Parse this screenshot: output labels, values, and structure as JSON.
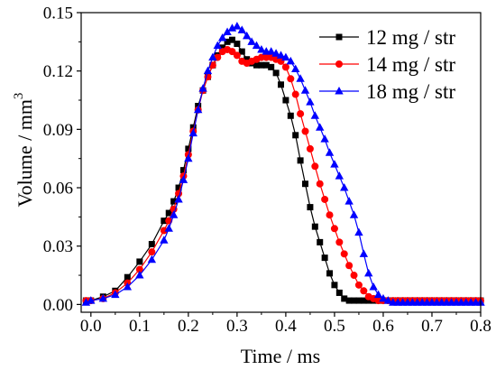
{
  "chart_data": {
    "type": "line",
    "xlabel": "Time / ms",
    "ylabel": "Volume / mm",
    "ylabel_superscript": "3",
    "xlim": [
      -0.02,
      0.8
    ],
    "ylim": [
      -0.004,
      0.15
    ],
    "xticks": [
      "0.0",
      "0.1",
      "0.2",
      "0.3",
      "0.4",
      "0.5",
      "0.6",
      "0.7",
      "0.8"
    ],
    "yticks": [
      "0.00",
      "0.03",
      "0.06",
      "0.09",
      "0.12",
      "0.15"
    ],
    "grid": false,
    "legend_position": "top-right",
    "x": [
      -0.01,
      0.0,
      0.025,
      0.05,
      0.075,
      0.1,
      0.125,
      0.15,
      0.16,
      0.17,
      0.18,
      0.19,
      0.2,
      0.21,
      0.22,
      0.23,
      0.24,
      0.25,
      0.26,
      0.27,
      0.28,
      0.29,
      0.3,
      0.31,
      0.32,
      0.33,
      0.34,
      0.35,
      0.36,
      0.37,
      0.38,
      0.39,
      0.4,
      0.41,
      0.42,
      0.43,
      0.44,
      0.45,
      0.46,
      0.47,
      0.48,
      0.49,
      0.5,
      0.51,
      0.52,
      0.53,
      0.54,
      0.55,
      0.56,
      0.57,
      0.58,
      0.59,
      0.6,
      0.61,
      0.62,
      0.63,
      0.64,
      0.65,
      0.66,
      0.67,
      0.68,
      0.69,
      0.7,
      0.71,
      0.72,
      0.73,
      0.74,
      0.75,
      0.76,
      0.77,
      0.78,
      0.79,
      0.8
    ],
    "series": [
      {
        "name": "12 mg / str",
        "color": "#000000",
        "marker": "square",
        "values": [
          0.002,
          0.002,
          0.004,
          0.007,
          0.014,
          0.022,
          0.031,
          0.043,
          0.047,
          0.053,
          0.06,
          0.069,
          0.08,
          0.091,
          0.102,
          0.11,
          0.117,
          0.123,
          0.128,
          0.132,
          0.135,
          0.136,
          0.134,
          0.13,
          0.126,
          0.124,
          0.123,
          0.123,
          0.123,
          0.122,
          0.119,
          0.113,
          0.105,
          0.097,
          0.087,
          0.074,
          0.062,
          0.05,
          0.04,
          0.032,
          0.024,
          0.016,
          0.01,
          0.006,
          0.003,
          0.002,
          0.002,
          0.002,
          0.002,
          0.002,
          0.002,
          0.002,
          0.002,
          0.002,
          0.002,
          0.002,
          0.002,
          0.002,
          0.002,
          0.002,
          0.002,
          0.002,
          0.002,
          0.002,
          0.002,
          0.002,
          0.002,
          0.002,
          0.002,
          0.002,
          0.002,
          0.002,
          0.002
        ]
      },
      {
        "name": "14 mg / str",
        "color": "#ff0000",
        "marker": "circle",
        "values": [
          0.002,
          0.002,
          0.003,
          0.006,
          0.011,
          0.018,
          0.027,
          0.038,
          0.043,
          0.049,
          0.057,
          0.066,
          0.077,
          0.089,
          0.1,
          0.11,
          0.117,
          0.123,
          0.127,
          0.13,
          0.131,
          0.13,
          0.128,
          0.125,
          0.124,
          0.125,
          0.126,
          0.127,
          0.127,
          0.127,
          0.126,
          0.125,
          0.122,
          0.116,
          0.108,
          0.098,
          0.089,
          0.08,
          0.071,
          0.062,
          0.054,
          0.046,
          0.039,
          0.032,
          0.026,
          0.02,
          0.015,
          0.01,
          0.007,
          0.004,
          0.003,
          0.002,
          0.002,
          0.002,
          0.002,
          0.002,
          0.002,
          0.002,
          0.002,
          0.002,
          0.002,
          0.002,
          0.002,
          0.002,
          0.002,
          0.002,
          0.002,
          0.002,
          0.002,
          0.002,
          0.002,
          0.002,
          0.002
        ]
      },
      {
        "name": "18 mg / str",
        "color": "#0000ff",
        "marker": "triangle",
        "values": [
          0.001,
          0.002,
          0.003,
          0.005,
          0.009,
          0.015,
          0.023,
          0.033,
          0.039,
          0.046,
          0.054,
          0.064,
          0.075,
          0.088,
          0.1,
          0.111,
          0.12,
          0.127,
          0.133,
          0.137,
          0.14,
          0.142,
          0.143,
          0.141,
          0.138,
          0.135,
          0.133,
          0.131,
          0.13,
          0.13,
          0.129,
          0.128,
          0.127,
          0.125,
          0.121,
          0.116,
          0.11,
          0.104,
          0.097,
          0.091,
          0.085,
          0.078,
          0.072,
          0.066,
          0.06,
          0.053,
          0.046,
          0.037,
          0.026,
          0.016,
          0.009,
          0.005,
          0.003,
          0.002,
          0.001,
          0.001,
          0.001,
          0.001,
          0.001,
          0.001,
          0.001,
          0.001,
          0.001,
          0.001,
          0.001,
          0.001,
          0.001,
          0.001,
          0.001,
          0.001,
          0.001,
          0.001,
          0.001
        ]
      }
    ]
  }
}
